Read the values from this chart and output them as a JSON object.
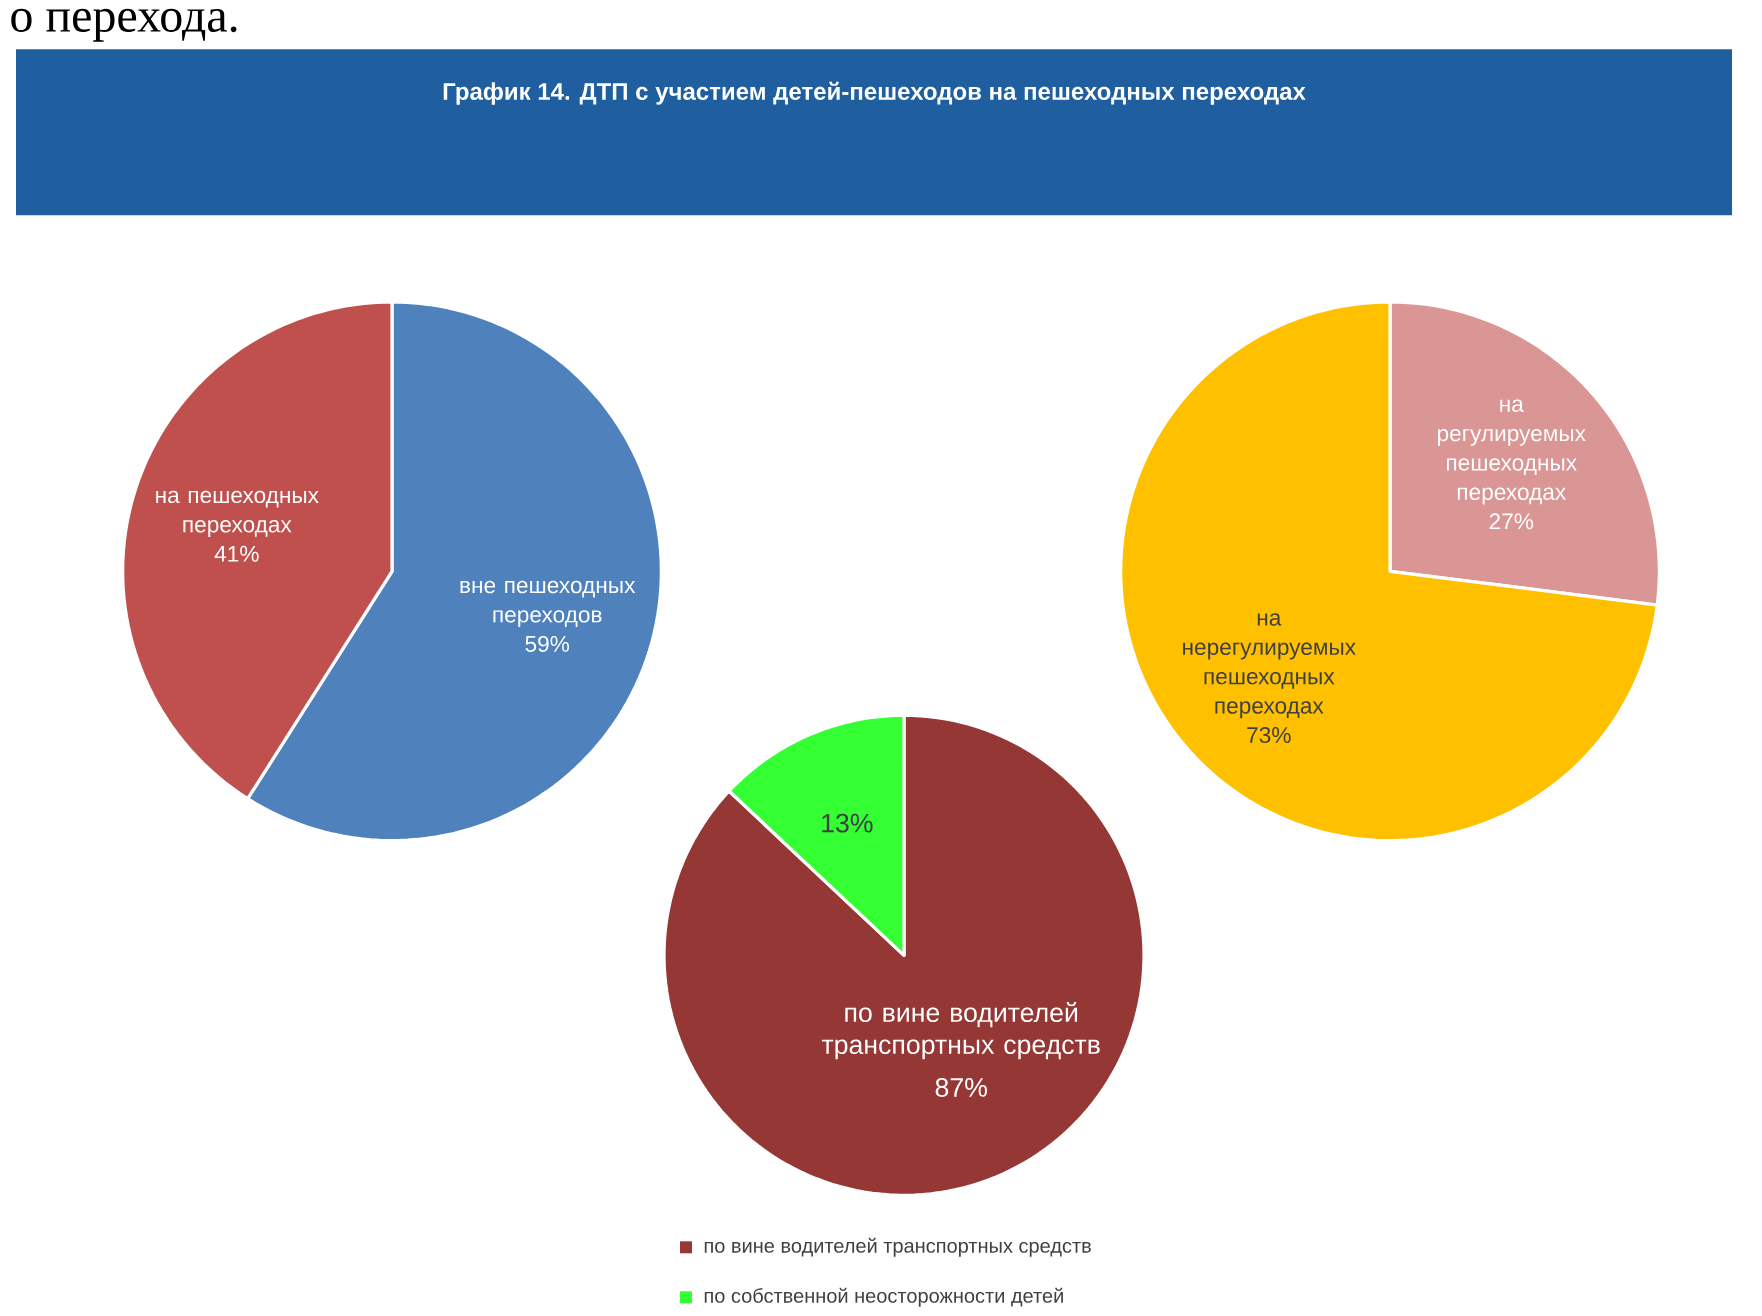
{
  "chart_data": [
    {
      "type": "pie",
      "title": "График 14. ДТП с участием детей-пешеходов на пешеходных переходах",
      "categories": [
        "вне пешеходных переходов",
        "на пешеходных переходах"
      ],
      "values": [
        59,
        41
      ],
      "colors": [
        "#4f81bd",
        "#c0504d"
      ],
      "value_labels": [
        "59%",
        "41%"
      ],
      "annotations": [
        "о перехода."
      ]
    },
    {
      "type": "pie",
      "categories": [
        "на регулируемых пешеходных переходах",
        "на нерегулируемых пешеходных переходах"
      ],
      "values": [
        27,
        73
      ],
      "colors": [
        "#d99694",
        "#ffc000"
      ],
      "value_labels": [
        "27%",
        "73%"
      ]
    },
    {
      "type": "pie",
      "categories": [
        "по вине водителей транспортных средств",
        "по собственной неосторожности детей"
      ],
      "values": [
        87,
        13
      ],
      "colors": [
        "#953735",
        "#33ff33"
      ],
      "value_labels": [
        "87%",
        "13%"
      ],
      "legend": "bottom",
      "annotations": [
        "по вине водителей транспортных средств"
      ]
    }
  ]
}
